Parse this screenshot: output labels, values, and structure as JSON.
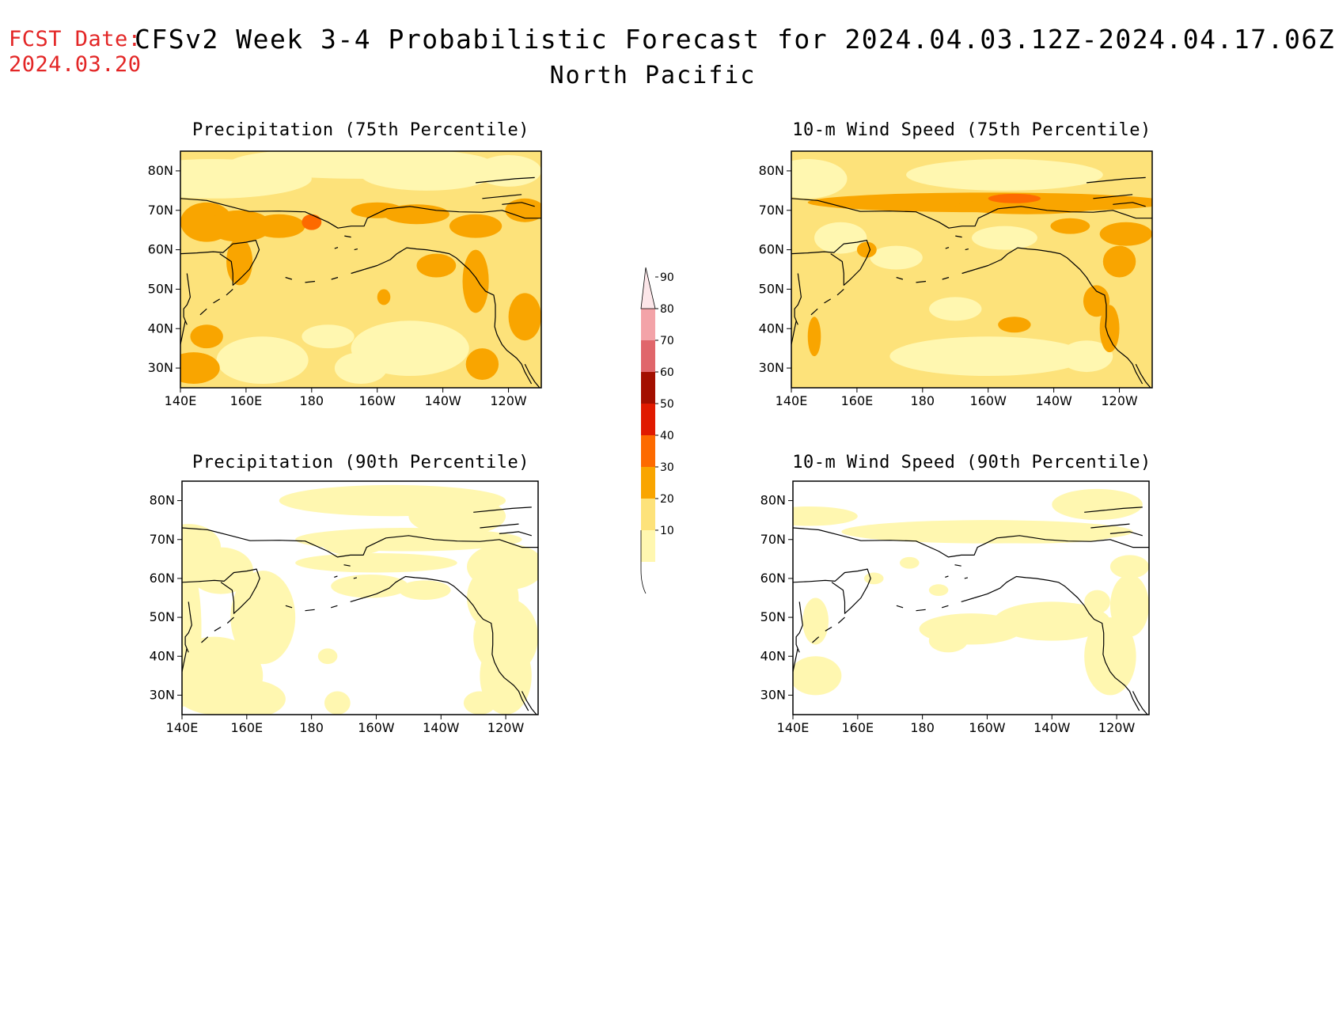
{
  "header": {
    "fcst_label": "FCST Date:",
    "fcst_date": "2024.03.20",
    "title": "CFSv2 Week 3-4 Probabilistic Forecast for 2024.04.03.12Z-2024.04.17.06Z",
    "subtitle": "North Pacific"
  },
  "axes": {
    "lat_labels": [
      "80N",
      "70N",
      "60N",
      "50N",
      "40N",
      "30N"
    ],
    "lon_labels": [
      "140E",
      "160E",
      "180",
      "160W",
      "140W",
      "120W"
    ]
  },
  "panels": [
    {
      "id": "precip-75",
      "title": "Precipitation (75th Percentile)",
      "base_level": 20
    },
    {
      "id": "wind-75",
      "title": "10-m Wind Speed (75th Percentile)",
      "base_level": 20
    },
    {
      "id": "precip-90",
      "title": "Precipitation (90th Percentile)",
      "base_level": 0
    },
    {
      "id": "wind-90",
      "title": "10-m Wind Speed (90th Percentile)",
      "base_level": 0
    }
  ],
  "colorbar": {
    "levels": [
      "10",
      "20",
      "30",
      "40",
      "50",
      "60",
      "70",
      "80",
      "90"
    ],
    "colors": [
      "#fff7b0",
      "#fde27a",
      "#f9a500",
      "#fd6a00",
      "#e01a00",
      "#a30f00",
      "#e0666b",
      "#f3a3a8",
      "#fce6e9"
    ],
    "shade_colors": {
      "0": "#ffffff",
      "10": "#fff7b0",
      "20": "#fde27a",
      "30": "#f9a500",
      "40": "#fd6a00"
    }
  }
}
